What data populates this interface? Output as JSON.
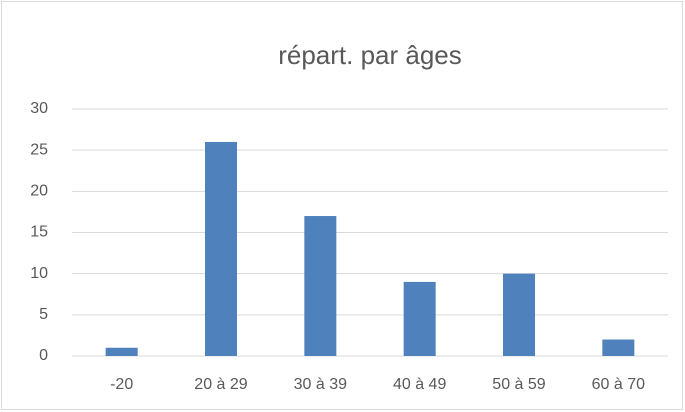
{
  "chart_data": {
    "type": "bar",
    "title": "répart. par âges",
    "categories": [
      "-20",
      "20 à 29",
      "30 à 39",
      "40 à 49",
      "50 à 59",
      "60 à 70"
    ],
    "values": [
      1,
      26,
      17,
      9,
      10,
      2
    ],
    "color": "#4f81bd",
    "ylim": [
      0,
      30
    ],
    "yticks": [
      0,
      5,
      10,
      15,
      20,
      25,
      30
    ],
    "grid": true
  }
}
